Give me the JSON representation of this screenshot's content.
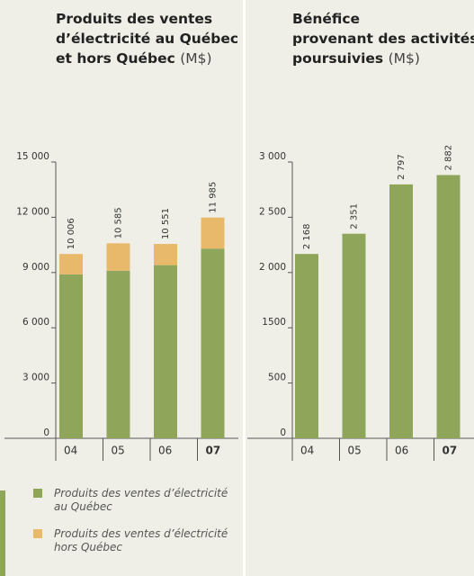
{
  "chart_data": [
    {
      "type": "stacked_bar",
      "title": [
        "Produits des ventes",
        "d’électricité au Québec",
        "et hors Québec"
      ],
      "unit": "(M$)",
      "categories": [
        "04",
        "05",
        "06",
        "07"
      ],
      "series": [
        {
          "name": "Produits des ventes d’électricité au Québec",
          "color": "#8ea55a",
          "values": [
            8900,
            9100,
            9400,
            10300
          ]
        },
        {
          "name": "Produits des ventes d’électricité hors Québec",
          "color": "#e8b96a",
          "values": [
            1106,
            1485,
            1151,
            1685
          ]
        }
      ],
      "totals": [
        10006,
        10585,
        10551,
        11985
      ],
      "total_labels": [
        "10 006",
        "10 585",
        "10 551",
        "11 985"
      ],
      "ylim": [
        0,
        15000
      ],
      "yticks": [
        0,
        {
          "value": 3000,
          "label": "3 000"
        },
        {
          "value": 6000,
          "label": "6 000"
        },
        {
          "value": 9000,
          "label": "9 000"
        },
        {
          "value": 12000,
          "label": "12 000"
        },
        {
          "value": 15000,
          "label": "15 000"
        }
      ]
    },
    {
      "type": "bar",
      "title": [
        "Bénéfice",
        "provenant des activités",
        "poursuivies"
      ],
      "unit": "(M$)",
      "categories": [
        "04",
        "05",
        "06",
        "07"
      ],
      "values": [
        2168,
        2351,
        2797,
        2882
      ],
      "value_labels": [
        "2 168",
        "2 351",
        "2 797",
        "2 882"
      ],
      "color": "#8ea55a",
      "ylim": [
        0,
        3000
      ],
      "yticks": [
        0,
        500,
        1500,
        {
          "value": 2000,
          "label": "2 000"
        },
        {
          "value": 2500,
          "label": "2 500"
        },
        {
          "value": 3000,
          "label": "3 000"
        }
      ]
    }
  ]
}
